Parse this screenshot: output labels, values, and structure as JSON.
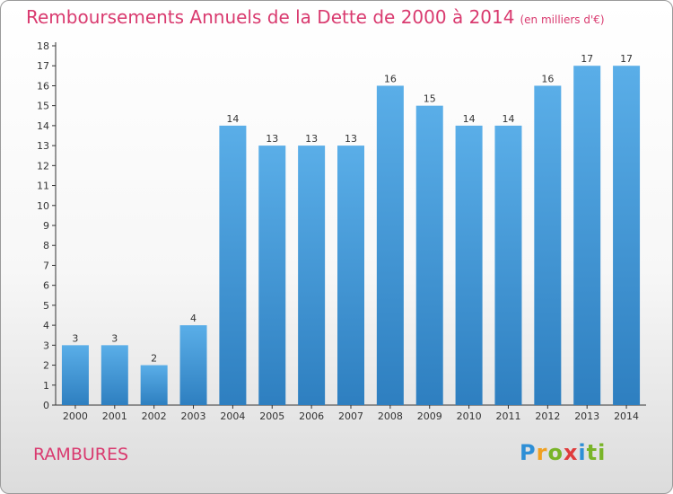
{
  "header": {
    "title": "Remboursements Annuels de la Dette de 2000 à 2014",
    "unit": "(en milliers d'€)"
  },
  "commune": "RAMBURES",
  "logo": [
    "P",
    "r",
    "o",
    "x",
    "i",
    "ti"
  ],
  "colors": {
    "bar_light": "#5aaee8",
    "bar_dark": "#2e7fc0",
    "title": "#d93a6f"
  },
  "chart_data": {
    "type": "bar",
    "title": "Remboursements Annuels de la Dette de 2000 à 2014",
    "xlabel": "",
    "ylabel": "",
    "ylim": [
      0,
      18
    ],
    "y_ticks": [
      0,
      1,
      2,
      3,
      4,
      5,
      6,
      7,
      8,
      9,
      10,
      11,
      12,
      13,
      14,
      15,
      16,
      17,
      18
    ],
    "grid": false,
    "categories": [
      "2000",
      "2001",
      "2002",
      "2003",
      "2004",
      "2005",
      "2006",
      "2007",
      "2008",
      "2009",
      "2010",
      "2011",
      "2012",
      "2013",
      "2014"
    ],
    "values": [
      3,
      3,
      2,
      4,
      14,
      13,
      13,
      13,
      16,
      15,
      14,
      14,
      16,
      17,
      17
    ]
  }
}
